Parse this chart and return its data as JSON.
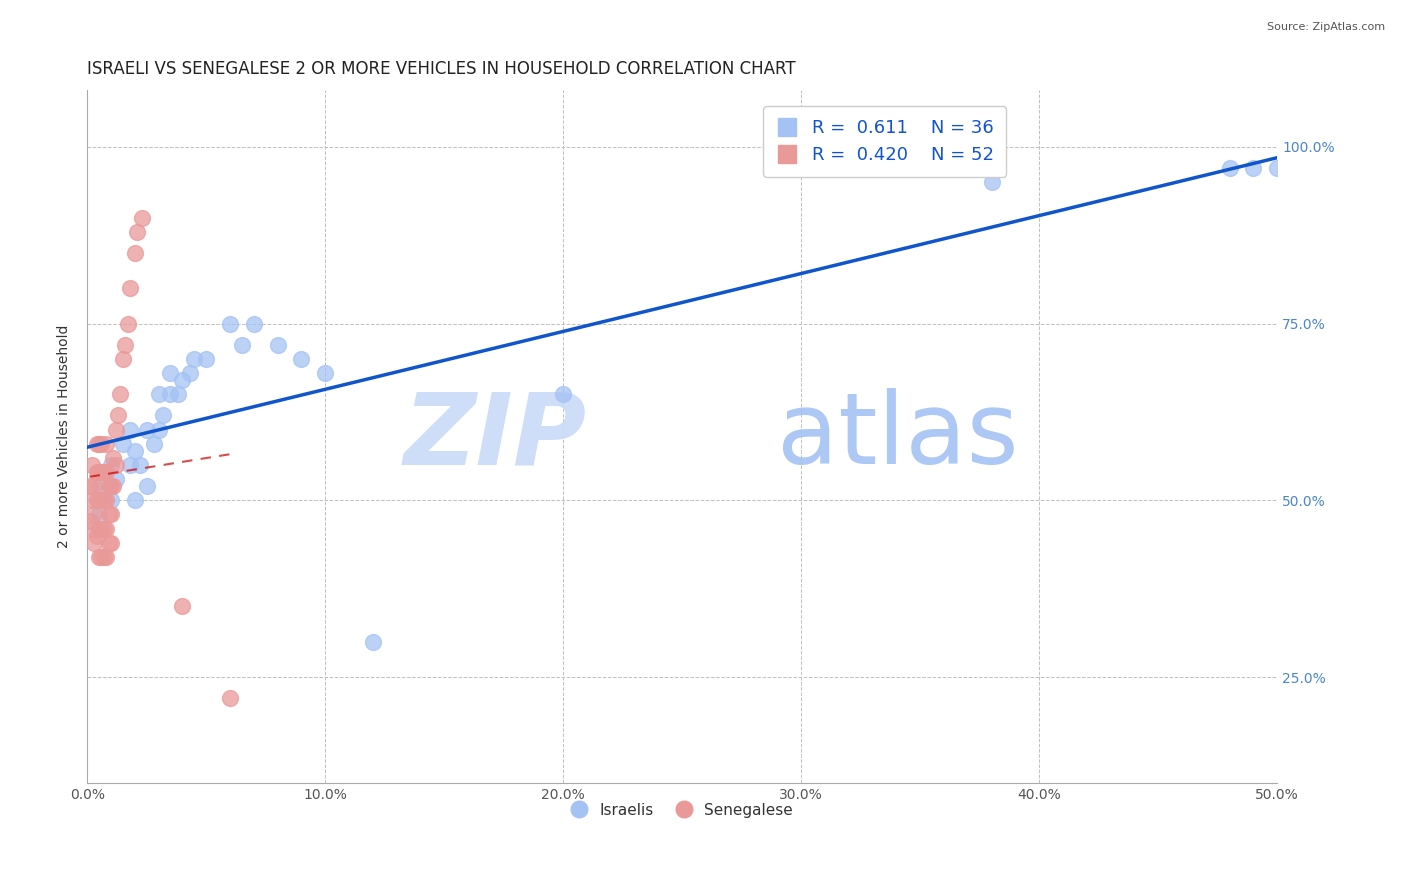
{
  "title": "ISRAELI VS SENEGALESE 2 OR MORE VEHICLES IN HOUSEHOLD CORRELATION CHART",
  "source": "Source: ZipAtlas.com",
  "ylabel": "2 or more Vehicles in Household",
  "xlabel_ticks": [
    "0.0%",
    "10.0%",
    "20.0%",
    "30.0%",
    "40.0%",
    "50.0%"
  ],
  "ylabel_ticks": [
    "25.0%",
    "50.0%",
    "75.0%",
    "100.0%"
  ],
  "xmin": 0.0,
  "xmax": 0.5,
  "ymin": 0.1,
  "ymax": 1.08,
  "ytick_vals": [
    0.25,
    0.5,
    0.75,
    1.0
  ],
  "xtick_vals": [
    0.0,
    0.1,
    0.2,
    0.3,
    0.4,
    0.5
  ],
  "israeli_color": "#a4c2f4",
  "senegalese_color": "#ea9999",
  "israeli_line_color": "#1155cc",
  "senegalese_line_color": "#cc0000",
  "title_fontsize": 12,
  "axis_label_fontsize": 10,
  "tick_fontsize": 10,
  "israeli_x": [
    0.005,
    0.005,
    0.01,
    0.01,
    0.012,
    0.015,
    0.018,
    0.018,
    0.02,
    0.02,
    0.022,
    0.025,
    0.025,
    0.028,
    0.03,
    0.03,
    0.032,
    0.035,
    0.035,
    0.038,
    0.04,
    0.043,
    0.045,
    0.05,
    0.06,
    0.065,
    0.07,
    0.08,
    0.09,
    0.1,
    0.12,
    0.2,
    0.38,
    0.48,
    0.49,
    0.5
  ],
  "israeli_y": [
    0.52,
    0.48,
    0.5,
    0.55,
    0.53,
    0.58,
    0.55,
    0.6,
    0.5,
    0.57,
    0.55,
    0.52,
    0.6,
    0.58,
    0.6,
    0.65,
    0.62,
    0.65,
    0.68,
    0.65,
    0.67,
    0.68,
    0.7,
    0.7,
    0.75,
    0.72,
    0.75,
    0.72,
    0.7,
    0.68,
    0.3,
    0.65,
    0.95,
    0.97,
    0.97,
    0.97
  ],
  "senegalese_x": [
    0.001,
    0.001,
    0.002,
    0.002,
    0.002,
    0.003,
    0.003,
    0.003,
    0.004,
    0.004,
    0.004,
    0.004,
    0.005,
    0.005,
    0.005,
    0.005,
    0.005,
    0.006,
    0.006,
    0.006,
    0.006,
    0.006,
    0.007,
    0.007,
    0.007,
    0.007,
    0.008,
    0.008,
    0.008,
    0.008,
    0.008,
    0.009,
    0.009,
    0.009,
    0.01,
    0.01,
    0.01,
    0.011,
    0.011,
    0.012,
    0.012,
    0.013,
    0.014,
    0.015,
    0.016,
    0.017,
    0.018,
    0.02,
    0.021,
    0.023,
    0.04,
    0.06
  ],
  "senegalese_y": [
    0.47,
    0.52,
    0.46,
    0.5,
    0.55,
    0.44,
    0.48,
    0.52,
    0.45,
    0.5,
    0.54,
    0.58,
    0.42,
    0.46,
    0.5,
    0.54,
    0.58,
    0.42,
    0.46,
    0.5,
    0.54,
    0.58,
    0.42,
    0.46,
    0.5,
    0.54,
    0.42,
    0.46,
    0.5,
    0.54,
    0.58,
    0.44,
    0.48,
    0.52,
    0.44,
    0.48,
    0.52,
    0.52,
    0.56,
    0.55,
    0.6,
    0.62,
    0.65,
    0.7,
    0.72,
    0.75,
    0.8,
    0.85,
    0.88,
    0.9,
    0.35,
    0.22
  ]
}
